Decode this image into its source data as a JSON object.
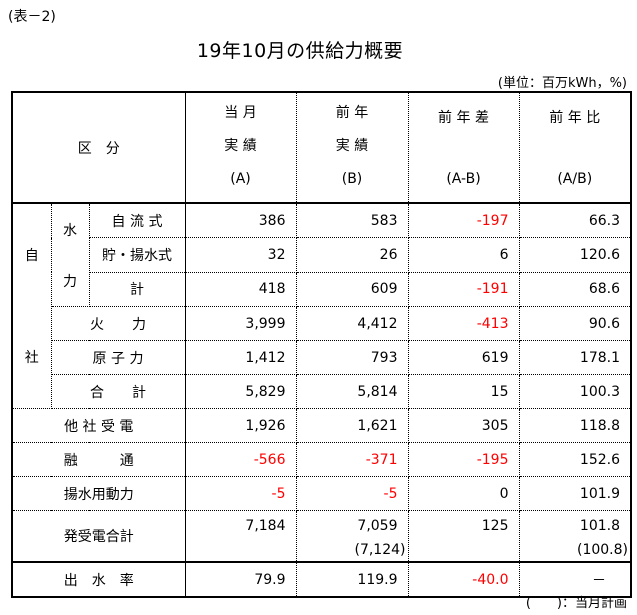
{
  "label": "(表－2)",
  "title": "19年10月の供給力概要",
  "unit": "(単位：百万kWh，%)",
  "footnote": "(　　)：当月計画",
  "colors": {
    "negative": "#ff0000",
    "text": "#000000"
  },
  "header": {
    "category": "区　分",
    "col_a": [
      "当 月",
      "実 績",
      "(A)"
    ],
    "col_b": [
      "前 年",
      "実 績",
      "(B)"
    ],
    "col_diff": [
      "前 年 差",
      "(A-B)"
    ],
    "col_ratio": [
      "前 年 比",
      "(A/B)"
    ]
  },
  "groups": {
    "own": [
      "自",
      "社"
    ],
    "hydro": [
      "水",
      "力"
    ]
  },
  "rows": [
    {
      "label": "自 流 式",
      "a": "386",
      "b": "583",
      "diff": "-197",
      "ratio": "66.3"
    },
    {
      "label": "貯・揚水式",
      "a": "32",
      "b": "26",
      "diff": "6",
      "ratio": "120.6"
    },
    {
      "label": "計",
      "a": "418",
      "b": "609",
      "diff": "-191",
      "ratio": "68.6"
    },
    {
      "label": "火　　力",
      "a": "3,999",
      "b": "4,412",
      "diff": "-413",
      "ratio": "90.6"
    },
    {
      "label": "原 子 力",
      "a": "1,412",
      "b": "793",
      "diff": "619",
      "ratio": "178.1"
    },
    {
      "label": "合　　計",
      "a": "5,829",
      "b": "5,814",
      "diff": "15",
      "ratio": "100.3"
    },
    {
      "label": "他 社 受 電",
      "a": "1,926",
      "b": "1,621",
      "diff": "305",
      "ratio": "118.8"
    },
    {
      "label": "融　　　通",
      "a": "-566",
      "b": "-371",
      "diff": "-195",
      "ratio": "152.6"
    },
    {
      "label": "揚水用動力",
      "a": "-5",
      "b": "-5",
      "diff": "0",
      "ratio": "101.9"
    },
    {
      "label": "発受電合計",
      "a": "7,184",
      "b": "7,059",
      "b_plan": "(7,124)",
      "diff": "125",
      "ratio": "101.8",
      "ratio_plan": "(100.8)"
    },
    {
      "label": "出　水　率",
      "a": "79.9",
      "b": "119.9",
      "diff": "-40.0",
      "ratio": "－"
    }
  ]
}
